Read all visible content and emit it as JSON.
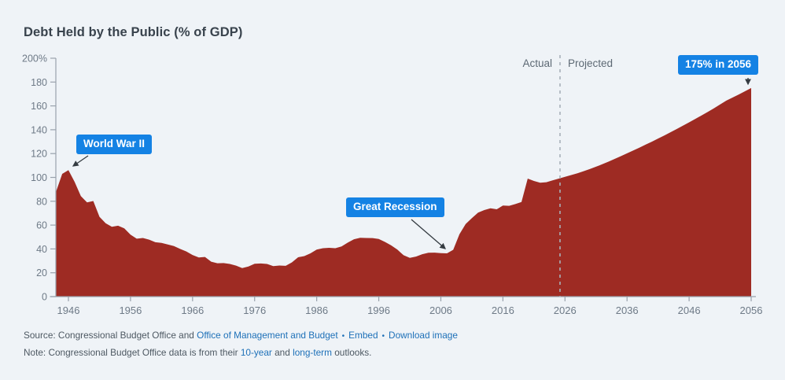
{
  "title": "Debt Held by the Public (% of GDP)",
  "colors": {
    "background": "#eff3f7",
    "area": "#9e2b23",
    "badge": "#1482e4",
    "badge_text": "#ffffff",
    "axis": "#99a2ac",
    "tick_label": "#6e7a87",
    "divider": "#a8b1b9",
    "phase_label": "#5d6974",
    "arrow": "#343b41",
    "link": "#1d70b8",
    "footer_text": "#4d5862",
    "title_text": "#39434d"
  },
  "badges": {
    "wwii": "World War II",
    "great_recession": "Great Recession",
    "peak": "175% in 2056"
  },
  "labels": {
    "actual": "Actual",
    "projected": "Projected"
  },
  "footer": {
    "source_prefix": "Source: Congressional Budget Office and ",
    "omb_link": "Office of Management and Budget",
    "bullet": "•",
    "embed_link": "Embed",
    "download_link": "Download image",
    "note_prefix": "Note: Congressional Budget Office data is from their ",
    "ten_year_link": "10-year",
    "note_and": " and ",
    "long_term_link": "long-term",
    "note_suffix": " outlooks."
  },
  "chart_data": {
    "type": "area",
    "title": "Debt Held by the Public (% of GDP)",
    "series_name": "Debt held by the public, % of GDP",
    "year_start": 1944,
    "year_end": 2056,
    "values": [
      88,
      103,
      106.1,
      96.2,
      84.3,
      79,
      80.2,
      66.9,
      61.6,
      58.6,
      59.5,
      57.2,
      52,
      48.6,
      49.2,
      47.8,
      45.6,
      45,
      43.7,
      42.4,
      40,
      37.9,
      34.9,
      32.8,
      33.3,
      29.3,
      28,
      28.1,
      27.4,
      26,
      23.9,
      25.3,
      27.5,
      27.8,
      27.4,
      25.6,
      26.1,
      25.8,
      28.7,
      33,
      34,
      36.3,
      39.5,
      40.6,
      40.9,
      40.6,
      42.1,
      45.3,
      48.1,
      49.3,
      49.2,
      49.1,
      48.4,
      45.9,
      43,
      39.4,
      34.7,
      32.5,
      33.6,
      35.6,
      36.8,
      36.9,
      36.5,
      36.3,
      39.3,
      52.3,
      60.9,
      65.9,
      70.4,
      72.6,
      74.1,
      73.3,
      76.4,
      76.2,
      77.6,
      79.4,
      99,
      97,
      95.5,
      96,
      97.5,
      99,
      100.5,
      102,
      103.5,
      105.2,
      107,
      109,
      111,
      113.2,
      115.5,
      117.8,
      120.2,
      122.6,
      125,
      127.5,
      130,
      132.6,
      135.2,
      137.9,
      140.6,
      143.4,
      146.2,
      149.1,
      152,
      155,
      158,
      161.2,
      164.4,
      167,
      169.6,
      172.3,
      175
    ],
    "xticks": [
      1946,
      1956,
      1966,
      1976,
      1986,
      1996,
      2006,
      2016,
      2026,
      2036,
      2046,
      2056
    ],
    "ytick_values": [
      0,
      20,
      40,
      60,
      80,
      100,
      120,
      140,
      160,
      180,
      200
    ],
    "ytick_labels": [
      "0",
      "20",
      "40",
      "60",
      "80",
      "100",
      "120",
      "140",
      "160",
      "180",
      "200%"
    ],
    "ylim": [
      0,
      200
    ],
    "grid": false,
    "divider_year": 2025.2,
    "annotations": [
      {
        "label": "World War II",
        "year": 1946,
        "value": 106.1
      },
      {
        "label": "Great Recession",
        "year": 2007,
        "value": 36.3
      },
      {
        "label": "175% in 2056",
        "year": 2056,
        "value": 175
      }
    ]
  }
}
